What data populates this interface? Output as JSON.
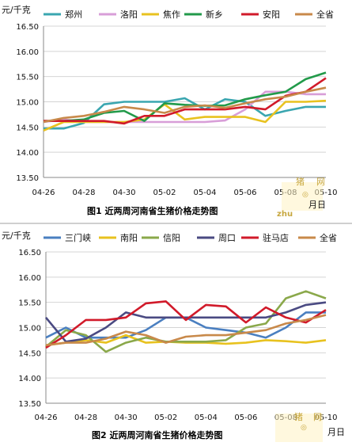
{
  "chart_data": [
    {
      "type": "line",
      "yunit": "元/千克",
      "caption": "图1  近两周河南省生猪价格走势图",
      "xunit": "月日",
      "ylim": [
        13.5,
        16.5
      ],
      "yticks": [
        "16.50",
        "16.00",
        "15.50",
        "15.00",
        "14.50",
        "14.00",
        "13.50"
      ],
      "x": [
        "04-26",
        "04-27",
        "04-28",
        "04-29",
        "04-30",
        "05-01",
        "05-02",
        "05-03",
        "05-04",
        "05-05",
        "05-06",
        "05-07",
        "05-08",
        "05-09",
        "05-10"
      ],
      "xticklabels": [
        "04-26",
        "04-28",
        "04-30",
        "05-02",
        "05-04",
        "05-06",
        "05-08",
        "05-10"
      ],
      "grid": true,
      "legend_position": "top",
      "series": [
        {
          "name": "郑州",
          "color": "#3aa6b0",
          "values": [
            14.47,
            14.47,
            14.58,
            14.95,
            15.0,
            15.0,
            15.0,
            15.07,
            14.85,
            15.05,
            15.0,
            14.72,
            14.82,
            14.9,
            14.9
          ]
        },
        {
          "name": "洛阳",
          "color": "#d89ed8",
          "values": [
            14.6,
            14.65,
            14.6,
            14.6,
            14.6,
            14.6,
            14.6,
            14.6,
            14.6,
            14.63,
            14.85,
            15.2,
            15.2,
            15.15,
            15.15
          ]
        },
        {
          "name": "焦作",
          "color": "#e8c21f",
          "values": [
            14.43,
            14.6,
            14.6,
            14.6,
            14.6,
            14.65,
            14.95,
            14.65,
            14.7,
            14.7,
            14.7,
            14.6,
            15.0,
            15.0,
            15.02
          ]
        },
        {
          "name": "新乡",
          "color": "#229a4a",
          "values": [
            14.62,
            14.62,
            14.65,
            14.78,
            14.82,
            14.62,
            14.97,
            14.94,
            14.92,
            14.93,
            15.05,
            15.13,
            15.2,
            15.45,
            15.58
          ]
        },
        {
          "name": "安阳",
          "color": "#d11a2a",
          "values": [
            14.62,
            14.62,
            14.62,
            14.62,
            14.57,
            14.72,
            14.72,
            14.85,
            14.85,
            14.85,
            14.9,
            14.85,
            15.12,
            15.2,
            15.47
          ]
        },
        {
          "name": "全省",
          "color": "#c8894a",
          "values": [
            14.6,
            14.68,
            14.72,
            14.8,
            14.9,
            14.85,
            14.78,
            14.9,
            14.93,
            14.88,
            14.97,
            15.05,
            15.1,
            15.2,
            15.28
          ]
        }
      ]
    },
    {
      "type": "line",
      "yunit": "元/千克",
      "caption": "图2  近两周河南省生猪价格走势图",
      "xunit": "月日",
      "ylim": [
        13.5,
        16.5
      ],
      "yticks": [
        "16.50",
        "16.00",
        "15.50",
        "15.00",
        "14.50",
        "14.00",
        "13.50"
      ],
      "x": [
        "04-26",
        "04-27",
        "04-28",
        "04-29",
        "04-30",
        "05-01",
        "05-02",
        "05-03",
        "05-04",
        "05-05",
        "05-06",
        "05-07",
        "05-08",
        "05-09",
        "05-10"
      ],
      "xticklabels": [
        "04-26",
        "04-28",
        "04-30",
        "05-02",
        "05-04",
        "05-06",
        "05-08",
        "05-10"
      ],
      "grid": true,
      "legend_position": "top",
      "series": [
        {
          "name": "三门峡",
          "color": "#4a7fc0",
          "values": [
            14.8,
            15.0,
            14.8,
            14.8,
            14.8,
            14.95,
            15.2,
            15.2,
            15.0,
            14.95,
            14.9,
            14.8,
            15.0,
            15.3,
            15.3
          ]
        },
        {
          "name": "南阳",
          "color": "#e8c21f",
          "values": [
            14.65,
            14.7,
            14.75,
            14.7,
            14.85,
            14.7,
            14.72,
            14.7,
            14.7,
            14.68,
            14.7,
            14.75,
            14.73,
            14.7,
            14.75
          ]
        },
        {
          "name": "信阳",
          "color": "#8aa84a",
          "values": [
            14.62,
            14.95,
            14.85,
            14.52,
            14.7,
            14.8,
            14.72,
            14.72,
            14.72,
            14.75,
            15.0,
            15.08,
            15.58,
            15.72,
            15.58
          ]
        },
        {
          "name": "周口",
          "color": "#4a4a82",
          "values": [
            15.2,
            14.72,
            14.78,
            15.0,
            15.3,
            15.2,
            15.2,
            15.2,
            15.2,
            15.2,
            15.2,
            15.2,
            15.3,
            15.45,
            15.5
          ]
        },
        {
          "name": "驻马店",
          "color": "#d11a2a",
          "values": [
            14.6,
            14.85,
            15.15,
            15.15,
            15.2,
            15.48,
            15.52,
            15.15,
            15.45,
            15.42,
            15.1,
            15.4,
            15.2,
            15.1,
            15.35
          ]
        },
        {
          "name": "全省",
          "color": "#c8894a",
          "values": [
            14.65,
            14.7,
            14.7,
            14.78,
            14.92,
            14.85,
            14.7,
            14.82,
            14.85,
            14.85,
            14.9,
            14.95,
            15.08,
            15.15,
            15.25
          ]
        }
      ]
    }
  ]
}
